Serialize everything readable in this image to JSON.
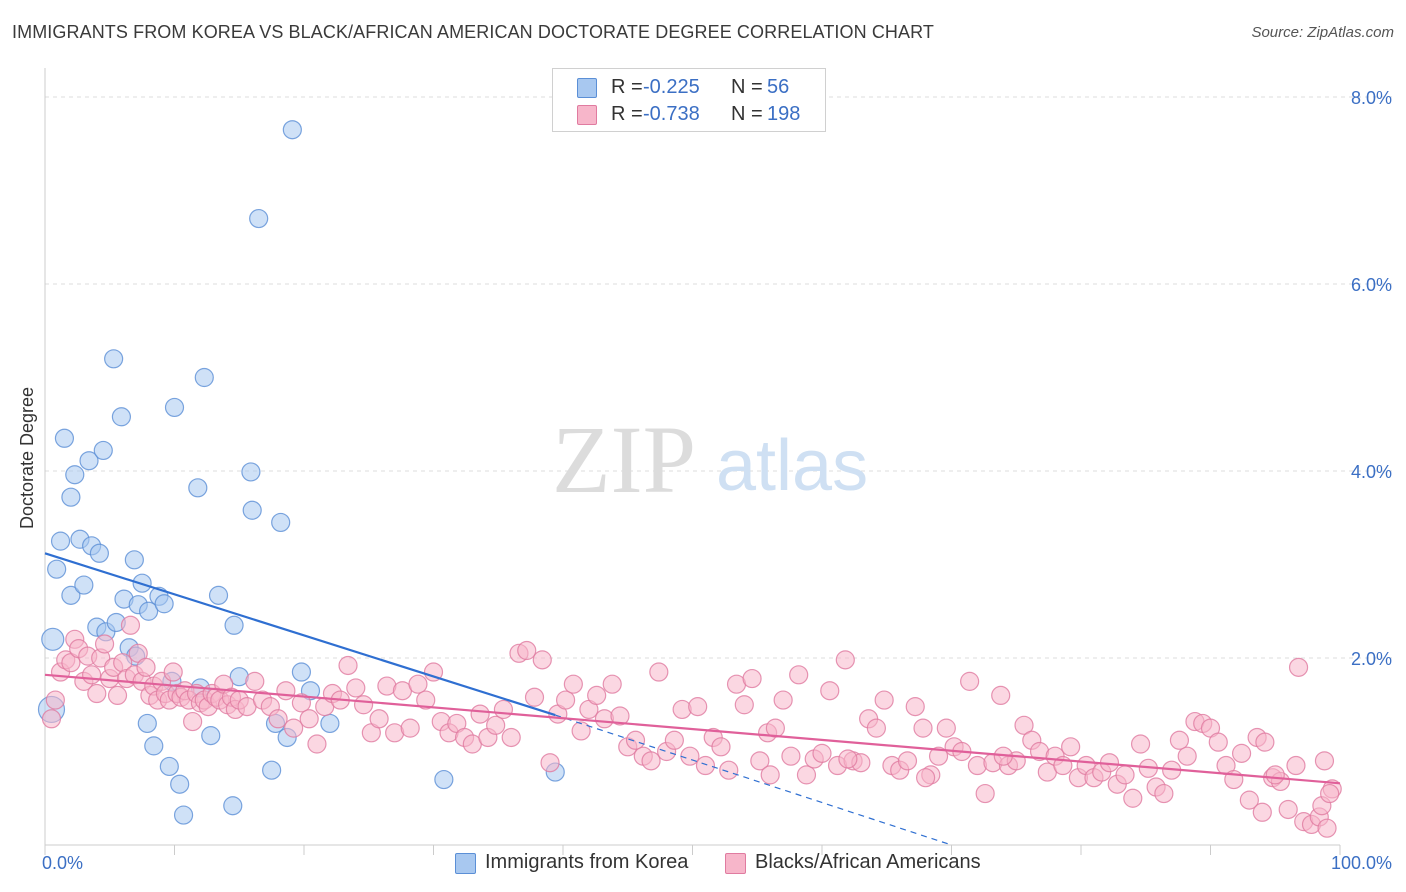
{
  "title": "IMMIGRANTS FROM KOREA VS BLACK/AFRICAN AMERICAN DOCTORATE DEGREE CORRELATION CHART",
  "source": "Source: ZipAtlas.com",
  "watermark": {
    "zip": "ZIP",
    "atlas": "atlas"
  },
  "legend": {
    "rows": [
      {
        "r_label": "R =",
        "r_value": "-0.225",
        "n_label": "N =",
        "n_value": "56",
        "color": "#a8c8f0",
        "border": "#5b8fd6"
      },
      {
        "r_label": "R =",
        "r_value": "-0.738",
        "n_label": "N =",
        "n_value": "198",
        "color": "#f7b6ca",
        "border": "#e07ba0"
      }
    ]
  },
  "bottom_legend": [
    {
      "label": "Immigrants from Korea",
      "color": "#a8c8f0",
      "border": "#5b8fd6"
    },
    {
      "label": "Blacks/African Americans",
      "color": "#f7b6ca",
      "border": "#e07ba0"
    }
  ],
  "chart_data": {
    "type": "scatter",
    "title": "IMMIGRANTS FROM KOREA VS BLACK/AFRICAN AMERICAN DOCTORATE DEGREE CORRELATION CHART",
    "xlabel": "",
    "ylabel": "Doctorate Degree",
    "xlim": [
      0,
      100
    ],
    "ylim": [
      0,
      8.0
    ],
    "x_tick_labels": [
      "0.0%",
      "100.0%"
    ],
    "y_ticks": [
      2.0,
      4.0,
      6.0,
      8.0
    ],
    "y_tick_labels": [
      "2.0%",
      "4.0%",
      "6.0%",
      "8.0%"
    ],
    "grid": true,
    "legend_placement": "top-center",
    "series": [
      {
        "name": "Immigrants from Korea",
        "color": "#a8c8f0",
        "edge": "#5b8fd6",
        "trend": {
          "x": [
            0,
            39.4
          ],
          "y": [
            3.12,
            1.39
          ],
          "dashed_to": [
            70,
            0
          ]
        },
        "points": [
          [
            0.5,
            1.45
          ],
          [
            0.6,
            2.2
          ],
          [
            0.9,
            2.95
          ],
          [
            1.2,
            3.25
          ],
          [
            1.5,
            4.35
          ],
          [
            2.0,
            2.67
          ],
          [
            2.0,
            3.72
          ],
          [
            2.3,
            3.96
          ],
          [
            2.7,
            3.27
          ],
          [
            3.0,
            2.78
          ],
          [
            3.4,
            4.11
          ],
          [
            3.6,
            3.2
          ],
          [
            4.0,
            2.33
          ],
          [
            4.2,
            3.12
          ],
          [
            4.5,
            4.22
          ],
          [
            4.7,
            2.28
          ],
          [
            5.3,
            5.2
          ],
          [
            5.5,
            2.38
          ],
          [
            5.9,
            4.58
          ],
          [
            6.1,
            2.63
          ],
          [
            6.5,
            2.11
          ],
          [
            6.9,
            3.05
          ],
          [
            7.2,
            2.57
          ],
          [
            7.5,
            2.8
          ],
          [
            7.9,
            1.3
          ],
          [
            8.0,
            2.5
          ],
          [
            8.4,
            1.06
          ],
          [
            8.8,
            2.66
          ],
          [
            9.2,
            2.58
          ],
          [
            9.6,
            0.84
          ],
          [
            10.0,
            4.68
          ],
          [
            10.4,
            0.65
          ],
          [
            10.7,
            0.32
          ],
          [
            11.8,
            3.82
          ],
          [
            12.3,
            5.0
          ],
          [
            12.8,
            1.17
          ],
          [
            13.4,
            2.67
          ],
          [
            14.5,
            0.42
          ],
          [
            14.6,
            2.35
          ],
          [
            15.9,
            3.99
          ],
          [
            16.0,
            3.58
          ],
          [
            16.5,
            6.7
          ],
          [
            17.5,
            0.8
          ],
          [
            18.2,
            3.45
          ],
          [
            18.7,
            1.15
          ],
          [
            19.1,
            7.65
          ],
          [
            19.8,
            1.85
          ],
          [
            20.5,
            1.65
          ],
          [
            22.0,
            1.3
          ],
          [
            30.8,
            0.7
          ],
          [
            39.4,
            0.78
          ],
          [
            9.8,
            1.75
          ],
          [
            12.0,
            1.68
          ],
          [
            15.0,
            1.8
          ],
          [
            7.0,
            2.02
          ],
          [
            17.8,
            1.3
          ]
        ]
      },
      {
        "name": "Blacks/African Americans",
        "color": "#f7b6ca",
        "edge": "#e07ba0",
        "trend": {
          "x": [
            0,
            100
          ],
          "y": [
            1.82,
            0.66
          ]
        },
        "points": [
          [
            0.5,
            1.35
          ],
          [
            0.8,
            1.55
          ],
          [
            1.2,
            1.85
          ],
          [
            1.6,
            1.98
          ],
          [
            2.0,
            1.95
          ],
          [
            2.3,
            2.2
          ],
          [
            2.6,
            2.1
          ],
          [
            3.0,
            1.75
          ],
          [
            3.3,
            2.02
          ],
          [
            3.6,
            1.82
          ],
          [
            4.0,
            1.62
          ],
          [
            4.3,
            2.0
          ],
          [
            4.6,
            2.15
          ],
          [
            5.0,
            1.78
          ],
          [
            5.3,
            1.9
          ],
          [
            5.6,
            1.6
          ],
          [
            6.0,
            1.95
          ],
          [
            6.3,
            1.78
          ],
          [
            6.6,
            2.35
          ],
          [
            6.9,
            1.82
          ],
          [
            7.2,
            2.05
          ],
          [
            7.5,
            1.75
          ],
          [
            7.8,
            1.9
          ],
          [
            8.1,
            1.6
          ],
          [
            8.4,
            1.7
          ],
          [
            8.7,
            1.55
          ],
          [
            9.0,
            1.75
          ],
          [
            9.3,
            1.62
          ],
          [
            9.6,
            1.55
          ],
          [
            9.9,
            1.85
          ],
          [
            10.2,
            1.62
          ],
          [
            10.5,
            1.58
          ],
          [
            10.8,
            1.65
          ],
          [
            11.1,
            1.55
          ],
          [
            11.4,
            1.32
          ],
          [
            11.7,
            1.62
          ],
          [
            12.0,
            1.52
          ],
          [
            12.3,
            1.55
          ],
          [
            12.6,
            1.48
          ],
          [
            12.9,
            1.62
          ],
          [
            13.2,
            1.58
          ],
          [
            13.5,
            1.55
          ],
          [
            13.8,
            1.72
          ],
          [
            14.1,
            1.5
          ],
          [
            14.4,
            1.58
          ],
          [
            14.7,
            1.45
          ],
          [
            15.0,
            1.55
          ],
          [
            15.6,
            1.48
          ],
          [
            16.2,
            1.75
          ],
          [
            16.8,
            1.55
          ],
          [
            17.4,
            1.48
          ],
          [
            18.0,
            1.35
          ],
          [
            18.6,
            1.65
          ],
          [
            19.2,
            1.25
          ],
          [
            19.8,
            1.52
          ],
          [
            20.4,
            1.35
          ],
          [
            21.0,
            1.08
          ],
          [
            21.6,
            1.48
          ],
          [
            22.2,
            1.62
          ],
          [
            22.8,
            1.55
          ],
          [
            23.4,
            1.92
          ],
          [
            24.0,
            1.68
          ],
          [
            24.6,
            1.5
          ],
          [
            25.2,
            1.2
          ],
          [
            25.8,
            1.35
          ],
          [
            26.4,
            1.7
          ],
          [
            27.0,
            1.2
          ],
          [
            27.6,
            1.65
          ],
          [
            28.2,
            1.25
          ],
          [
            28.8,
            1.72
          ],
          [
            29.4,
            1.55
          ],
          [
            30.0,
            1.85
          ],
          [
            30.6,
            1.32
          ],
          [
            31.2,
            1.2
          ],
          [
            31.8,
            1.3
          ],
          [
            32.4,
            1.15
          ],
          [
            33.0,
            1.08
          ],
          [
            33.6,
            1.4
          ],
          [
            34.2,
            1.15
          ],
          [
            34.8,
            1.28
          ],
          [
            35.4,
            1.45
          ],
          [
            36.0,
            1.15
          ],
          [
            36.6,
            2.05
          ],
          [
            37.2,
            2.08
          ],
          [
            37.8,
            1.58
          ],
          [
            38.4,
            1.98
          ],
          [
            39.0,
            0.88
          ],
          [
            39.6,
            1.4
          ],
          [
            40.2,
            1.55
          ],
          [
            40.8,
            1.72
          ],
          [
            41.4,
            1.22
          ],
          [
            42.0,
            1.45
          ],
          [
            42.6,
            1.6
          ],
          [
            43.2,
            1.35
          ],
          [
            43.8,
            1.72
          ],
          [
            44.4,
            1.38
          ],
          [
            45.0,
            1.05
          ],
          [
            45.6,
            1.12
          ],
          [
            46.2,
            0.95
          ],
          [
            46.8,
            0.9
          ],
          [
            47.4,
            1.85
          ],
          [
            48.0,
            1.0
          ],
          [
            48.6,
            1.12
          ],
          [
            49.2,
            1.45
          ],
          [
            49.8,
            0.95
          ],
          [
            50.4,
            1.48
          ],
          [
            51.0,
            0.85
          ],
          [
            51.6,
            1.15
          ],
          [
            52.2,
            1.05
          ],
          [
            52.8,
            0.8
          ],
          [
            53.4,
            1.72
          ],
          [
            54.0,
            1.5
          ],
          [
            54.6,
            1.78
          ],
          [
            55.2,
            0.9
          ],
          [
            55.8,
            1.2
          ],
          [
            56.4,
            1.25
          ],
          [
            57.0,
            1.55
          ],
          [
            57.6,
            0.95
          ],
          [
            58.2,
            1.82
          ],
          [
            58.8,
            0.75
          ],
          [
            59.4,
            0.92
          ],
          [
            60.0,
            0.98
          ],
          [
            60.6,
            1.65
          ],
          [
            61.2,
            0.85
          ],
          [
            61.8,
            1.98
          ],
          [
            62.4,
            0.9
          ],
          [
            63.0,
            0.88
          ],
          [
            63.6,
            1.35
          ],
          [
            64.2,
            1.25
          ],
          [
            64.8,
            1.55
          ],
          [
            65.4,
            0.85
          ],
          [
            66.0,
            0.8
          ],
          [
            66.6,
            0.9
          ],
          [
            67.2,
            1.48
          ],
          [
            67.8,
            1.25
          ],
          [
            68.4,
            0.75
          ],
          [
            69.0,
            0.95
          ],
          [
            69.6,
            1.25
          ],
          [
            70.2,
            1.05
          ],
          [
            70.8,
            1.0
          ],
          [
            71.4,
            1.75
          ],
          [
            72.0,
            0.85
          ],
          [
            72.6,
            0.55
          ],
          [
            73.2,
            0.88
          ],
          [
            73.8,
            1.6
          ],
          [
            74.4,
            0.85
          ],
          [
            75.0,
            0.9
          ],
          [
            75.6,
            1.28
          ],
          [
            76.2,
            1.12
          ],
          [
            76.8,
            1.0
          ],
          [
            77.4,
            0.78
          ],
          [
            78.0,
            0.95
          ],
          [
            78.6,
            0.85
          ],
          [
            79.2,
            1.05
          ],
          [
            79.8,
            0.72
          ],
          [
            80.4,
            0.85
          ],
          [
            81.0,
            0.72
          ],
          [
            81.6,
            0.78
          ],
          [
            82.2,
            0.88
          ],
          [
            82.8,
            0.65
          ],
          [
            83.4,
            0.75
          ],
          [
            84.0,
            0.5
          ],
          [
            84.6,
            1.08
          ],
          [
            85.2,
            0.82
          ],
          [
            85.8,
            0.62
          ],
          [
            86.4,
            0.55
          ],
          [
            87.0,
            0.8
          ],
          [
            87.6,
            1.12
          ],
          [
            88.2,
            0.95
          ],
          [
            88.8,
            1.32
          ],
          [
            89.4,
            1.3
          ],
          [
            90.0,
            1.25
          ],
          [
            90.6,
            1.1
          ],
          [
            91.2,
            0.85
          ],
          [
            91.8,
            0.7
          ],
          [
            92.4,
            0.98
          ],
          [
            93.0,
            0.48
          ],
          [
            93.6,
            1.15
          ],
          [
            94.2,
            1.1
          ],
          [
            94.8,
            0.72
          ],
          [
            95.4,
            0.68
          ],
          [
            96.0,
            0.38
          ],
          [
            96.6,
            0.85
          ],
          [
            97.2,
            0.25
          ],
          [
            97.8,
            0.22
          ],
          [
            98.4,
            0.3
          ],
          [
            98.8,
            0.9
          ],
          [
            99.4,
            0.6
          ],
          [
            99.0,
            0.18
          ],
          [
            96.8,
            1.9
          ],
          [
            94.0,
            0.35
          ],
          [
            95.0,
            0.75
          ],
          [
            98.6,
            0.42
          ],
          [
            99.2,
            0.55
          ],
          [
            74.0,
            0.95
          ],
          [
            68.0,
            0.72
          ],
          [
            62.0,
            0.92
          ],
          [
            56.0,
            0.75
          ]
        ]
      }
    ]
  }
}
